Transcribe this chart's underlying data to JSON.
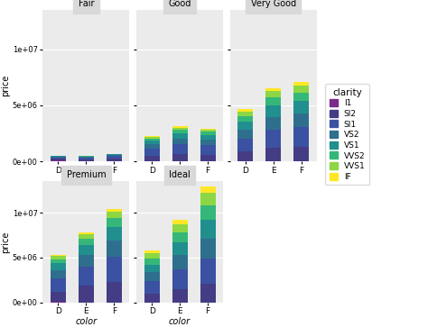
{
  "cuts": [
    "Fair",
    "Good",
    "Very Good",
    "Premium",
    "Ideal"
  ],
  "colors_x": [
    "D",
    "E",
    "F"
  ],
  "clarity_order": [
    "I1",
    "SI2",
    "SI1",
    "VS2",
    "VS1",
    "VVS2",
    "VVS1",
    "IF"
  ],
  "clarity_colors": {
    "I1": "#7B2D8B",
    "SI2": "#443C84",
    "SI1": "#3A52A1",
    "VS2": "#2F6F8E",
    "VS1": "#218F8D",
    "VVS2": "#35B779",
    "VVS1": "#8DD644",
    "IF": "#FDE725"
  },
  "data": {
    "Fair": {
      "D": {
        "I1": 55000,
        "SI2": 185000,
        "SI1": 125000,
        "VS2": 55000,
        "VS1": 35000,
        "VVS2": 18000,
        "VVS1": 8000,
        "IF": 4000
      },
      "E": {
        "I1": 22000,
        "SI2": 165000,
        "SI1": 145000,
        "VS2": 65000,
        "VS1": 45000,
        "VVS2": 22000,
        "VVS1": 10000,
        "IF": 5000
      },
      "F": {
        "I1": 32000,
        "SI2": 235000,
        "SI1": 185000,
        "VS2": 88000,
        "VS1": 68000,
        "VVS2": 32000,
        "VVS1": 16000,
        "IF": 7000
      }
    },
    "Good": {
      "D": {
        "I1": 4000,
        "SI2": 480000,
        "SI1": 680000,
        "VS2": 380000,
        "VS1": 320000,
        "VVS2": 185000,
        "VVS1": 130000,
        "IF": 70000
      },
      "E": {
        "I1": 4000,
        "SI2": 620000,
        "SI1": 920000,
        "VS2": 510000,
        "VS1": 460000,
        "VVS2": 290000,
        "VVS1": 200000,
        "IF": 110000
      },
      "F": {
        "I1": 4000,
        "SI2": 560000,
        "SI1": 860000,
        "VS2": 490000,
        "VS1": 440000,
        "VVS2": 270000,
        "VVS1": 185000,
        "IF": 100000
      }
    },
    "Very Good": {
      "D": {
        "I1": 3000,
        "SI2": 870000,
        "SI1": 1180000,
        "VS2": 780000,
        "VS1": 730000,
        "VVS2": 490000,
        "VVS1": 390000,
        "IF": 195000
      },
      "E": {
        "I1": 3000,
        "SI2": 1220000,
        "SI1": 1620000,
        "VS2": 1120000,
        "VS1": 1020000,
        "VVS2": 720000,
        "VVS1": 560000,
        "IF": 290000
      },
      "F": {
        "I1": 3000,
        "SI2": 1320000,
        "SI1": 1720000,
        "VS2": 1220000,
        "VS1": 1120000,
        "VVS2": 770000,
        "VVS1": 595000,
        "IF": 310000
      }
    },
    "Premium": {
      "D": {
        "I1": 28000,
        "SI2": 1180000,
        "SI1": 1480000,
        "VS2": 880000,
        "VS1": 780000,
        "VVS2": 490000,
        "VVS1": 340000,
        "IF": 145000
      },
      "E": {
        "I1": 18000,
        "SI2": 1820000,
        "SI1": 2120000,
        "VS2": 1320000,
        "VS1": 1120000,
        "VVS2": 720000,
        "VVS1": 510000,
        "IF": 230000
      },
      "F": {
        "I1": 18000,
        "SI2": 2250000,
        "SI1": 2850000,
        "VS2": 1750000,
        "VS1": 1550000,
        "VVS2": 980000,
        "VVS1": 700000,
        "IF": 320000
      }
    },
    "Ideal": {
      "D": {
        "I1": 3000,
        "SI2": 980000,
        "SI1": 1380000,
        "VS2": 980000,
        "VS1": 880000,
        "VVS2": 680000,
        "VVS1": 580000,
        "IF": 330000
      },
      "E": {
        "I1": 3000,
        "SI2": 1520000,
        "SI1": 2120000,
        "VS2": 1620000,
        "VS1": 1420000,
        "VVS2": 1120000,
        "VVS1": 920000,
        "IF": 520000
      },
      "F": {
        "I1": 3000,
        "SI2": 2050000,
        "SI1": 2850000,
        "VS2": 2250000,
        "VS1": 2050000,
        "VVS2": 1650000,
        "VVS1": 1350000,
        "IF": 720000
      }
    }
  },
  "ylim": [
    0,
    13500000.0
  ],
  "yticks": [
    0,
    5000000,
    10000000
  ],
  "ytick_labels": [
    "0e+00",
    "5e+06",
    "1e+07"
  ],
  "ylabel": "price",
  "xlabel": "color",
  "legend_title": "clarity",
  "bg_color": "#EBEBEB",
  "panel_title_bg": "#D9D9D9",
  "grid_color": "white",
  "bar_width": 0.55
}
